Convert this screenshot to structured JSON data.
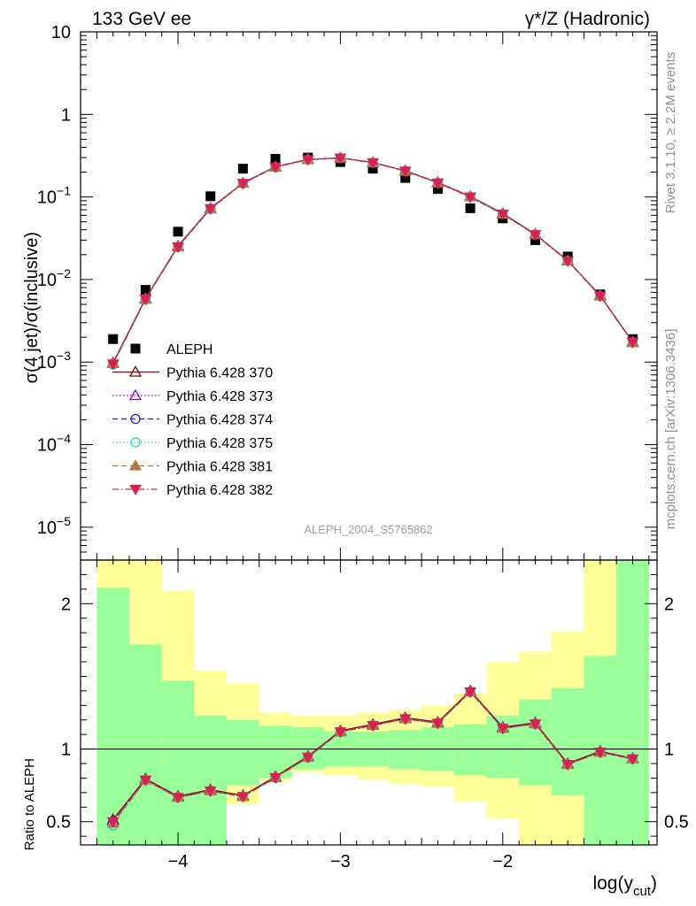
{
  "header": {
    "left": "133 GeV ee",
    "right": "γ*/Z (Hadronic)"
  },
  "side_labels": {
    "rivet": "Rivet 3.1.10, ≥ 2.2M events",
    "mcplots": "mcplots.cern.ch [arXiv:1306.3436]"
  },
  "watermark": "ALEPH_2004_S5765862",
  "chart_data": [
    {
      "type": "scatter",
      "panel": "main",
      "ylabel": "σ(4 jet)/σ(inclusive)",
      "yscale": "log",
      "ylim": [
        4e-06,
        10
      ],
      "xlim": [
        -4.6,
        -1.05
      ],
      "yticks": [
        1e-05,
        0.0001,
        0.001,
        0.01,
        0.1,
        1,
        10
      ],
      "yticklabels": [
        "10^-5",
        "10^-4",
        "10^-3",
        "10^-2",
        "10^-1",
        "1",
        "10"
      ],
      "legend_position": "lower-left",
      "x": [
        -4.4,
        -4.2,
        -4.0,
        -3.8,
        -3.6,
        -3.4,
        -3.2,
        -3.0,
        -2.8,
        -2.6,
        -2.4,
        -2.2,
        -2.0,
        -1.8,
        -1.6,
        -1.4,
        -1.2
      ],
      "series": [
        {
          "name": "ALEPH",
          "style": "data",
          "color": "#000000",
          "marker": "square",
          "values": [
            0.0019,
            0.0075,
            0.038,
            0.102,
            0.22,
            0.29,
            0.3,
            0.265,
            0.22,
            0.17,
            0.125,
            0.073,
            0.055,
            0.03,
            0.019,
            0.0066,
            0.0019
          ]
        },
        {
          "name": "Pythia 6.428 370",
          "color": "#8b0000",
          "marker": "triangle-up-open",
          "line": "solid",
          "values": [
            0.00098,
            0.0059,
            0.0255,
            0.073,
            0.148,
            0.232,
            0.285,
            0.298,
            0.262,
            0.208,
            0.15,
            0.102,
            0.063,
            0.0355,
            0.017,
            0.0064,
            0.00175
          ]
        },
        {
          "name": "Pythia 6.428 373",
          "color": "#9400d3",
          "marker": "triangle-up-open",
          "line": "dotted",
          "values": [
            0.00096,
            0.0058,
            0.025,
            0.072,
            0.147,
            0.231,
            0.284,
            0.297,
            0.261,
            0.207,
            0.149,
            0.101,
            0.062,
            0.0352,
            0.0169,
            0.0064,
            0.00176
          ]
        },
        {
          "name": "Pythia 6.428 374",
          "color": "#1e1ee6",
          "marker": "circle-open",
          "line": "dashed",
          "values": [
            0.00095,
            0.0058,
            0.025,
            0.072,
            0.146,
            0.23,
            0.283,
            0.296,
            0.26,
            0.206,
            0.148,
            0.1,
            0.062,
            0.035,
            0.0168,
            0.0063,
            0.00175
          ]
        },
        {
          "name": "Pythia 6.428 375",
          "color": "#20d4c0",
          "marker": "circle-open",
          "line": "dotted",
          "values": [
            0.00093,
            0.0057,
            0.0248,
            0.071,
            0.146,
            0.229,
            0.282,
            0.295,
            0.259,
            0.205,
            0.147,
            0.1,
            0.062,
            0.035,
            0.0168,
            0.0063,
            0.00173
          ]
        },
        {
          "name": "Pythia 6.428 381",
          "color": "#b07a48",
          "marker": "triangle-up",
          "line": "dashed",
          "values": [
            0.00096,
            0.0058,
            0.0249,
            0.072,
            0.147,
            0.23,
            0.283,
            0.296,
            0.26,
            0.206,
            0.148,
            0.101,
            0.062,
            0.0351,
            0.0168,
            0.0063,
            0.00172
          ]
        },
        {
          "name": "Pythia 6.428 382",
          "color": "#dc1e50",
          "marker": "triangle-down",
          "line": "dashdot",
          "values": [
            0.00095,
            0.0058,
            0.0249,
            0.072,
            0.146,
            0.23,
            0.283,
            0.296,
            0.26,
            0.206,
            0.148,
            0.1,
            0.062,
            0.035,
            0.0168,
            0.0063,
            0.00174
          ]
        }
      ]
    },
    {
      "type": "line",
      "panel": "ratio",
      "ylabel": "Ratio to ALEPH",
      "xlabel": "log(y_cut)",
      "xlim": [
        -4.6,
        -1.05
      ],
      "ylim": [
        0.34,
        2.3
      ],
      "yticks": [
        0.5,
        1,
        2
      ],
      "yticklabels": [
        "0.5",
        "1",
        "2"
      ],
      "xticks": [
        -4,
        -3,
        -2
      ],
      "xticklabels": [
        "−4",
        "−3",
        "−2"
      ],
      "reference": 1,
      "bands": {
        "edges": [
          -4.5,
          -4.3,
          -4.1,
          -3.9,
          -3.7,
          -3.5,
          -3.3,
          -3.1,
          -2.9,
          -2.7,
          -2.5,
          -2.3,
          -2.1,
          -1.9,
          -1.7,
          -1.5,
          -1.3,
          -1.1
        ],
        "inner_color": "#99ff99",
        "outer_color": "#ffff99",
        "inner_lo": [
          0.34,
          0.34,
          0.34,
          0.34,
          0.75,
          0.8,
          0.86,
          0.88,
          0.88,
          0.86,
          0.85,
          0.82,
          0.8,
          0.75,
          0.68,
          0.34,
          0.34
        ],
        "inner_hi": [
          2.11,
          1.72,
          1.47,
          1.23,
          1.2,
          1.16,
          1.15,
          1.12,
          1.12,
          1.13,
          1.15,
          1.17,
          1.23,
          1.34,
          1.42,
          1.64,
          2.3
        ],
        "outer_lo": [
          0.34,
          0.34,
          0.34,
          0.52,
          0.62,
          0.78,
          0.84,
          0.82,
          0.79,
          0.76,
          0.74,
          0.64,
          0.52,
          0.34,
          0.34,
          0.34,
          0.34
        ],
        "outer_hi": [
          2.3,
          2.3,
          2.09,
          1.54,
          1.45,
          1.25,
          1.23,
          1.23,
          1.25,
          1.27,
          1.3,
          1.38,
          1.6,
          1.67,
          1.81,
          2.3,
          2.3
        ]
      },
      "x": [
        -4.4,
        -4.2,
        -4.0,
        -3.8,
        -3.6,
        -3.4,
        -3.2,
        -3.0,
        -2.8,
        -2.6,
        -2.4,
        -2.2,
        -2.0,
        -1.8,
        -1.6,
        -1.4,
        -1.2
      ],
      "series": [
        {
          "name": "Pythia 6.428 370",
          "color": "#8b0000",
          "marker": "triangle-up-open",
          "line": "solid",
          "values": [
            0.515,
            0.795,
            0.675,
            0.72,
            0.68,
            0.81,
            0.95,
            1.125,
            1.17,
            1.215,
            1.185,
            1.4,
            1.15,
            1.18,
            0.9,
            0.985,
            0.935
          ]
        },
        {
          "name": "Pythia 6.428 373",
          "color": "#9400d3",
          "marker": "triangle-up-open",
          "line": "dotted",
          "values": [
            0.505,
            0.79,
            0.67,
            0.715,
            0.675,
            0.805,
            0.945,
            1.12,
            1.165,
            1.21,
            1.18,
            1.395,
            1.145,
            1.175,
            0.895,
            0.98,
            0.935
          ]
        },
        {
          "name": "Pythia 6.428 374",
          "color": "#1e1ee6",
          "marker": "circle-open",
          "line": "dashed",
          "values": [
            0.5,
            0.785,
            0.668,
            0.712,
            0.673,
            0.803,
            0.943,
            1.118,
            1.162,
            1.208,
            1.178,
            1.393,
            1.143,
            1.173,
            0.894,
            0.978,
            0.932
          ]
        },
        {
          "name": "Pythia 6.428 375",
          "color": "#20d4c0",
          "marker": "circle-open",
          "line": "dotted",
          "values": [
            0.475,
            0.785,
            0.665,
            0.71,
            0.672,
            0.8,
            0.94,
            1.115,
            1.16,
            1.205,
            1.175,
            1.39,
            1.14,
            1.17,
            0.893,
            0.977,
            0.93
          ]
        },
        {
          "name": "Pythia 6.428 381",
          "color": "#b07a48",
          "marker": "triangle-up",
          "line": "dashed",
          "values": [
            0.49,
            0.788,
            0.668,
            0.713,
            0.673,
            0.803,
            0.943,
            1.118,
            1.162,
            1.208,
            1.178,
            1.393,
            1.143,
            1.173,
            0.894,
            0.978,
            0.932
          ]
        },
        {
          "name": "Pythia 6.428 382",
          "color": "#dc1e50",
          "marker": "triangle-down",
          "line": "dashdot",
          "values": [
            0.5,
            0.787,
            0.667,
            0.712,
            0.673,
            0.803,
            0.943,
            1.118,
            1.162,
            1.208,
            1.178,
            1.393,
            1.143,
            1.173,
            0.894,
            0.978,
            0.932
          ]
        }
      ]
    }
  ]
}
